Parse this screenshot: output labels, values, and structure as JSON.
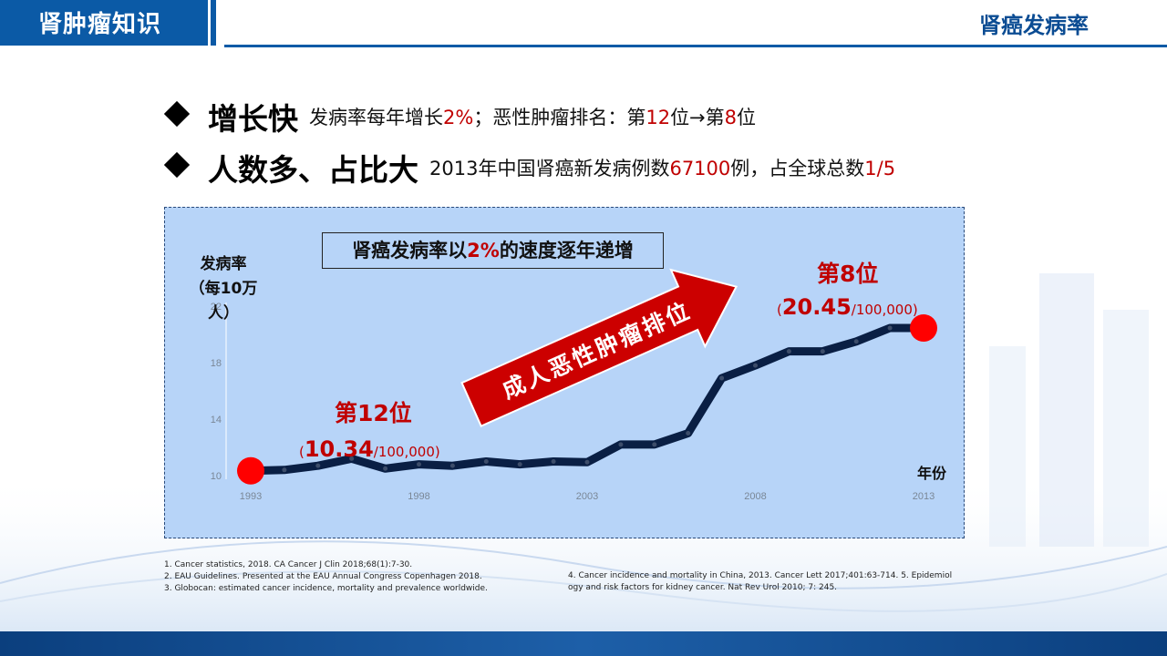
{
  "header": {
    "section_title": "肾肿瘤知识",
    "topic": "肾癌发病率"
  },
  "bullets": [
    {
      "head": "增长快",
      "desc_parts": [
        "发病率每年增长",
        "2%",
        "；恶性肿瘤排名：第",
        "12",
        "位→第",
        "8",
        "位"
      ]
    },
    {
      "head": "人数多、占比大",
      "desc_parts": [
        "2013年中国肾癌新发病例数",
        "67100",
        "例，占全球总数",
        "1/5"
      ]
    }
  ],
  "chart": {
    "banner_parts": [
      "肾癌发病率以",
      "2%",
      "的速度逐年递增"
    ],
    "ylabel_line1": "发病率",
    "ylabel_line2": "（每10万人）",
    "xlabel": "年份",
    "arrow_text": "成人恶性肿瘤排位",
    "start_rank": "第12位",
    "start_value": "10.34",
    "start_unit": "/100,000",
    "end_rank": "第8位",
    "end_value": "20.45",
    "end_unit": "/100,000",
    "colors": {
      "line": "#0a1f44",
      "marker": "#ff0000",
      "panel": "#b7d4f8",
      "accent": "#c00000",
      "arrow": "#cc0000"
    }
  },
  "chart_data": {
    "type": "line",
    "x": [
      1993,
      1994,
      1995,
      1996,
      1997,
      1998,
      1999,
      2000,
      2001,
      2002,
      2003,
      2004,
      2005,
      2006,
      2007,
      2008,
      2009,
      2010,
      2011,
      2012,
      2013
    ],
    "series": [
      {
        "values": [
          10.34,
          10.4,
          10.7,
          11.2,
          10.5,
          10.8,
          10.7,
          11.0,
          10.8,
          11.0,
          10.95,
          12.2,
          12.2,
          13.0,
          16.9,
          17.8,
          18.8,
          18.8,
          19.5,
          20.45,
          20.45
        ]
      }
    ],
    "xticks": [
      "1993",
      "1998",
      "2003",
      "2008",
      "2013"
    ],
    "yticks": [
      "10",
      "14",
      "18",
      "22"
    ],
    "ylim": [
      10,
      22
    ],
    "xlim": [
      1993,
      2013
    ]
  },
  "references": {
    "left": [
      "1. Cancer statistics, 2018. CA Cancer J Clin 2018;68(1):7-30.",
      "2. EAU Guidelines. Presented at the EAU Annual Congress Copenhagen 2018.",
      "3. Globocan: estimated cancer incidence, mortality and prevalence worldwide."
    ],
    "right": [
      "4. Cancer incidence and mortality in China, 2013. Cancer Lett 2017;401:63-714. 5. Epidemiol",
      "ogy and risk factors for kidney cancer. Nat Rev Urol 2010; 7: 245."
    ]
  }
}
